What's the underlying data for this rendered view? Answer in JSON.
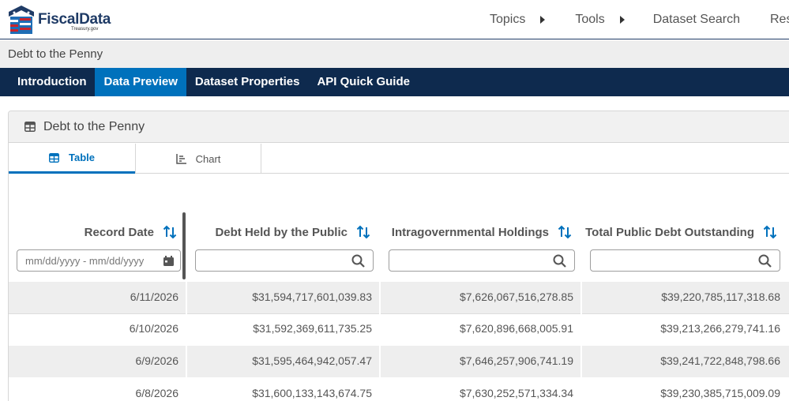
{
  "header": {
    "logo_text": "FiscalData",
    "logo_sub": "Treasury.gov",
    "nav": [
      {
        "label": "Topics"
      },
      {
        "label": "Tools"
      },
      {
        "label": "Dataset Search"
      },
      {
        "label": "Resou"
      }
    ]
  },
  "title_bar": {
    "title": "Debt to the Penny"
  },
  "tabnav": {
    "items": [
      {
        "label": "Introduction"
      },
      {
        "label": "Data Preview"
      },
      {
        "label": "Dataset Properties"
      },
      {
        "label": "API Quick Guide"
      }
    ],
    "active": "Data Preview"
  },
  "card": {
    "title": "Debt to the Penny",
    "view_tabs": {
      "table": "Table",
      "chart": "Chart"
    },
    "active_view": "Table"
  },
  "table": {
    "columns": [
      {
        "label": "Record Date",
        "filter_placeholder": "mm/dd/yyyy - mm/dd/yyyy"
      },
      {
        "label": "Debt Held by the Public",
        "filter_placeholder": ""
      },
      {
        "label": "Intragovernmental Holdings",
        "filter_placeholder": ""
      },
      {
        "label": "Total Public Debt Outstanding",
        "filter_placeholder": ""
      }
    ],
    "rows": [
      [
        "6/11/2026",
        "$31,594,717,601,039.83",
        "$7,626,067,516,278.85",
        "$39,220,785,117,318.68"
      ],
      [
        "6/10/2026",
        "$31,592,369,611,735.25",
        "$7,620,896,668,005.91",
        "$39,213,266,279,741.16"
      ],
      [
        "6/9/2026",
        "$31,595,464,942,057.47",
        "$7,646,257,906,741.19",
        "$39,241,722,848,798.66"
      ],
      [
        "6/8/2026",
        "$31,600,133,143,674.75",
        "$7,630,252,571,334.34",
        "$39,230,385,715,009.09"
      ]
    ]
  },
  "colors": {
    "navy": "#0e2a4e",
    "accent": "#0071bc",
    "logo_red": "#c9252c"
  }
}
